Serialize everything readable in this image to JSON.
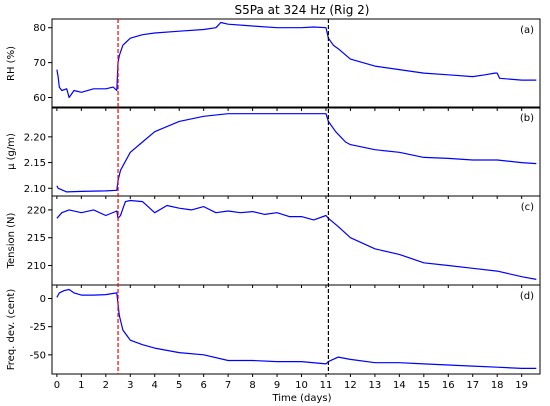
{
  "chart_data": {
    "type": "line",
    "title": "S5Pa at 324 Hz (Rig 2)",
    "xlabel": "Time (days)",
    "xlim": [
      -0.2,
      19.75
    ],
    "xticks": [
      0,
      1,
      2,
      3,
      4,
      5,
      6,
      7,
      8,
      9,
      10,
      11,
      12,
      13,
      14,
      15,
      16,
      17,
      18,
      19
    ],
    "line_color": "#0000ff",
    "vlines": [
      {
        "x": 2.5,
        "color": "#ff0000",
        "style": "dashed"
      },
      {
        "x": 11.1,
        "color": "#000000",
        "style": "dashed"
      }
    ],
    "panels": [
      {
        "tag": "(a)",
        "ylabel": "RH (%)",
        "ylim": [
          57,
          82.5
        ],
        "yticks": [
          60,
          70,
          80
        ],
        "series": [
          {
            "x": [
              0,
              0.05,
              0.1,
              0.2,
              0.4,
              0.5,
              0.7,
              1.0,
              1.5,
              2.0,
              2.3,
              2.45,
              2.5,
              2.55,
              2.7,
              3.0,
              3.5,
              4.0,
              5.0,
              6.0,
              6.5,
              6.7,
              7.0,
              8.0,
              9.0,
              10.0,
              10.5,
              11.0,
              11.1,
              11.3,
              11.5,
              12.0,
              13.0,
              14.0,
              15.0,
              16.0,
              17.0,
              17.5,
              17.9,
              18.0,
              18.1,
              19.0,
              19.6
            ],
            "values": [
              68,
              66,
              63,
              62,
              62.5,
              60,
              62,
              61.5,
              62.5,
              62.5,
              63,
              62,
              70,
              72,
              75,
              77,
              78,
              78.5,
              79,
              79.5,
              80,
              81.5,
              81,
              80.5,
              80,
              80,
              80.2,
              80,
              77,
              75,
              74,
              71,
              69,
              68,
              67,
              66.5,
              66,
              66.5,
              67,
              67,
              65.5,
              65,
              65
            ]
          }
        ]
      },
      {
        "tag": "(b)",
        "ylabel": "μ (g/m)",
        "ylim": [
          2.085,
          2.258
        ],
        "yticks": [
          2.1,
          2.15,
          2.2
        ],
        "series": [
          {
            "x": [
              0,
              0.05,
              0.2,
              0.4,
              1.0,
              2.0,
              2.45,
              2.5,
              2.6,
              3.0,
              3.5,
              4.0,
              5.0,
              6.0,
              7.0,
              8.0,
              9.0,
              10.0,
              11.0,
              11.1,
              11.4,
              11.8,
              12.0,
              13.0,
              14.0,
              15.0,
              16.0,
              17.0,
              18.0,
              19.0,
              19.6
            ],
            "values": [
              2.105,
              2.1,
              2.097,
              2.093,
              2.094,
              2.095,
              2.096,
              2.115,
              2.135,
              2.17,
              2.19,
              2.21,
              2.23,
              2.24,
              2.245,
              2.245,
              2.245,
              2.245,
              2.245,
              2.23,
              2.21,
              2.19,
              2.185,
              2.175,
              2.17,
              2.16,
              2.158,
              2.155,
              2.155,
              2.15,
              2.148
            ]
          }
        ]
      },
      {
        "tag": "(c)",
        "ylabel": "Tension (N)",
        "ylim": [
          206.5,
          222.5
        ],
        "yticks": [
          210,
          215,
          220
        ],
        "series": [
          {
            "x": [
              0,
              0.2,
              0.5,
              1.0,
              1.5,
              2.0,
              2.45,
              2.5,
              2.6,
              2.8,
              3.0,
              3.5,
              4.0,
              4.5,
              5.0,
              5.5,
              6.0,
              6.5,
              7.0,
              7.5,
              8.0,
              8.5,
              9.0,
              9.5,
              10.0,
              10.5,
              11.0,
              11.1,
              11.5,
              12.0,
              13.0,
              14.0,
              15.0,
              16.0,
              17.0,
              18.0,
              19.0,
              19.6
            ],
            "values": [
              218.5,
              219.5,
              220,
              219.5,
              220,
              219,
              219.8,
              218.5,
              219,
              221.5,
              221.7,
              221.5,
              219.5,
              220.8,
              220.3,
              220,
              220.6,
              219.5,
              219.8,
              219.5,
              219.7,
              219.2,
              219.5,
              218.8,
              218.8,
              218.2,
              219,
              218.5,
              217,
              215,
              213,
              212,
              210.5,
              210,
              209.5,
              209,
              208,
              207.5
            ]
          }
        ]
      },
      {
        "tag": "(d)",
        "ylabel": "Freq. dev. (cent)",
        "ylim": [
          -67,
          12
        ],
        "yticks": [
          0,
          -25,
          -50
        ],
        "series": [
          {
            "x": [
              0,
              0.1,
              0.3,
              0.5,
              0.7,
              1.0,
              1.5,
              2.0,
              2.45,
              2.5,
              2.55,
              2.7,
              3.0,
              3.5,
              4.0,
              5.0,
              6.0,
              7.0,
              8.0,
              9.0,
              10.0,
              11.0,
              11.1,
              11.5,
              12.0,
              13.0,
              14.0,
              15.0,
              16.0,
              17.0,
              18.0,
              19.0,
              19.6
            ],
            "values": [
              1,
              5,
              7,
              8,
              5,
              3,
              3,
              3.5,
              5,
              -5,
              -15,
              -28,
              -37,
              -41,
              -44,
              -48,
              -50,
              -55,
              -55,
              -56,
              -56,
              -58,
              -56,
              -52,
              -54,
              -57,
              -57,
              -58,
              -59,
              -60,
              -61,
              -62,
              -62
            ]
          }
        ]
      }
    ]
  }
}
